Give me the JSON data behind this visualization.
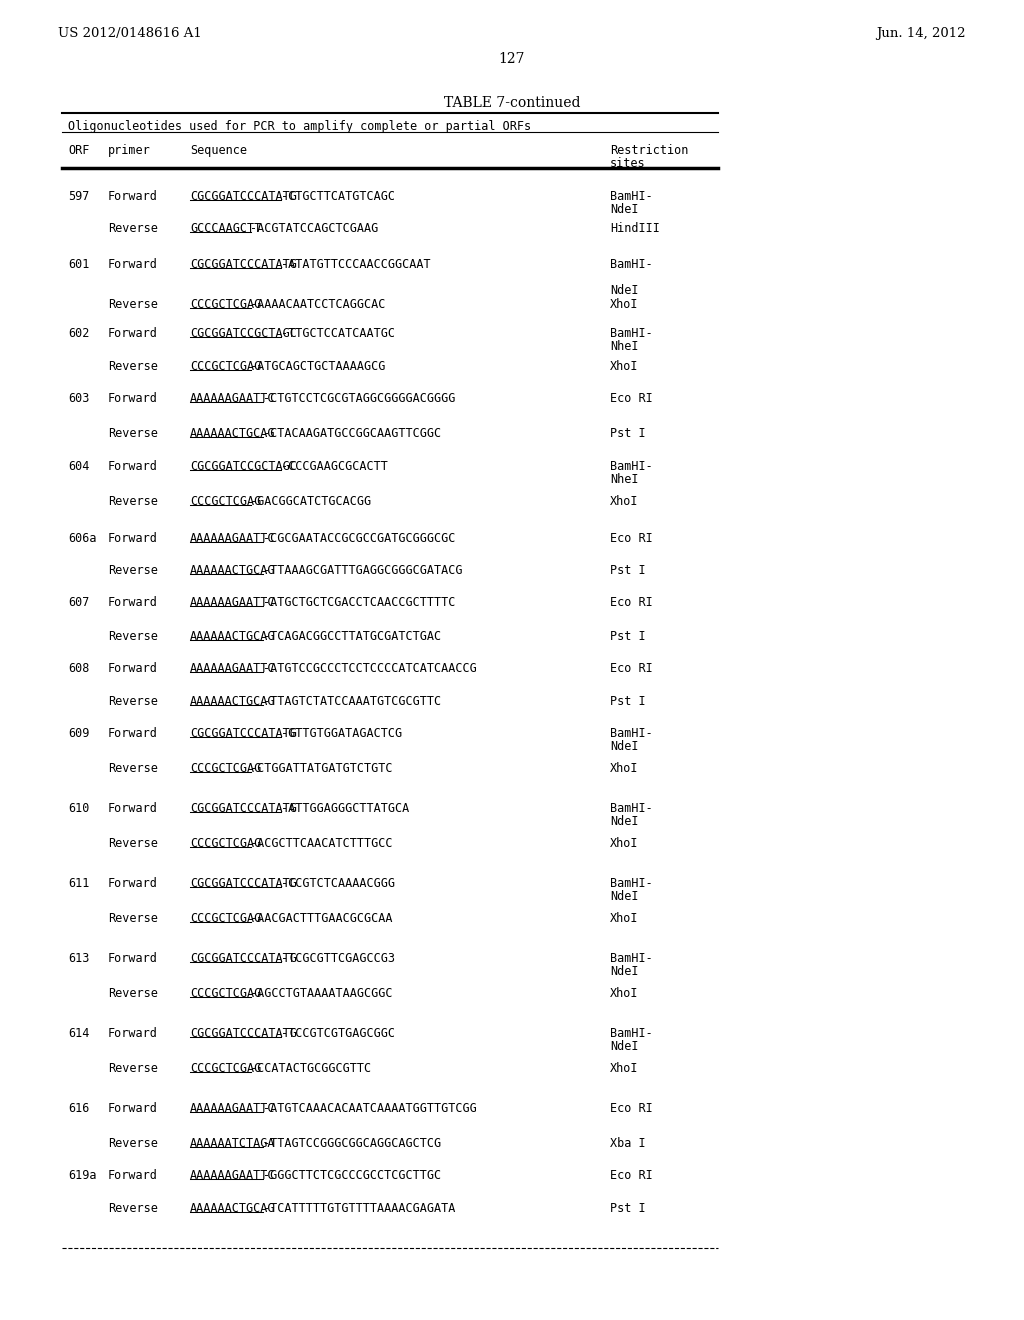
{
  "page_left": "US 2012/0148616 A1",
  "page_right": "Jun. 14, 2012",
  "page_number": "127",
  "table_title": "TABLE 7-continued",
  "table_subtitle": "Oligonucleotides used for PCR to amplify complete or partial ORFs",
  "background_color": "#ffffff",
  "text_color": "#000000",
  "row_entries": [
    [
      "597",
      "Forward",
      "CGCGGATCCCATATG",
      "-CTGCTTCATGTCAGC",
      "BamHI-\nNdeI"
    ],
    [
      "",
      "Reverse",
      "GCCCAAGCTT",
      "-ACGTATCCAGCTCGAAG",
      "HindIII"
    ],
    [
      "601",
      "Forward",
      "CGCGGATCCCATATG",
      "-ATATGTTCCCAACCGGCAAT",
      "BamHI-\n\nNdeI"
    ],
    [
      "",
      "Reverse",
      "CCCGCTCGAG",
      "-AAAACAATCCTCAGGCAC",
      "XhoI"
    ],
    [
      "602",
      "Forward",
      "CGCGGATCCGCTAGC",
      "-TTGCTCCATCAATGC",
      "BamHI-\nNheI"
    ],
    [
      "",
      "Reverse",
      "CCCGCTCGAG",
      "-ATGCAGCTGCTAAAAGCG",
      "XhoI"
    ],
    [
      "603",
      "Forward",
      "AAAAAAGAATTC",
      "-CTGTCCTCGCGTAGGCGGGGACGGGG",
      "Eco RI"
    ],
    [
      "",
      "Reverse",
      "AAAAAACTGCAG",
      "-CTACAAGATGCCGGCAAGTTCGGC",
      "Pst I"
    ],
    [
      "604",
      "Forward",
      "CGCGGATCCGCTAGC",
      "-CCCGAAGCGCACTT",
      "BamHI-\nNheI"
    ],
    [
      "",
      "Reverse",
      "CCCGCTCGAG",
      "-GACGGCATCTGCACGG",
      "XhoI"
    ],
    [
      "606a",
      "Forward",
      "AAAAAAGAATTC",
      "-CGCGAATACCGCGCCGATGCGGGCGC",
      "Eco RI"
    ],
    [
      "",
      "Reverse",
      "AAAAAACTGCAG",
      "-TTAAAGCGATTTGAGGCGGGCGATACG",
      "Pst I"
    ],
    [
      "607",
      "Forward",
      "AAAAAAGAATTC",
      "-ATGCTGCTCGACCTCAACCGCTTTTC",
      "Eco RI"
    ],
    [
      "",
      "Reverse",
      "AAAAAACTGCAG",
      "-TCAGACGGCCTTATGCGATCTGAC",
      "Pst I"
    ],
    [
      "608",
      "Forward",
      "AAAAAAGAATTC",
      "-ATGTCCGCCCTCCTCCCCATCATCAACCG",
      "Eco RI"
    ],
    [
      "",
      "Reverse",
      "AAAAAACTGCAG",
      "-TTAGTCTATCCAAATGTCGCGTTC",
      "Pst I"
    ],
    [
      "609",
      "Forward",
      "CGCGGATCCCATATG",
      "-GTTGTGGATAGACTCG",
      "BamHI-\nNdeI"
    ],
    [
      "",
      "Reverse",
      "CCCGCTCGAG",
      "-CTGGATTATGATGTCTGTC",
      "XhoI"
    ],
    [
      "610",
      "Forward",
      "CGCGGATCCCATATG",
      "-ATTGGAGGGCTTATGCA",
      "BamHI-\nNdeI"
    ],
    [
      "",
      "Reverse",
      "CCCGCTCGAG",
      "-ACGCTTCAACATCTTTGCC",
      "XhoI"
    ],
    [
      "611",
      "Forward",
      "CGCGGATCCCATATG",
      "-CCGTCTCAAAACGGG",
      "BamHI-\nNdeI"
    ],
    [
      "",
      "Reverse",
      "CCCGCTCGAG",
      "-AACGACTTTGAACGCGCAA",
      "XhoI"
    ],
    [
      "613",
      "Forward",
      "CGCGGATCCCATATG",
      "-TCGCGTTCGAGCCG3",
      "BamHI-\nNdeI"
    ],
    [
      "",
      "Reverse",
      "CCCGCTCGAG",
      "-AGCCTGTAAAATAAGCGGC",
      "XhoI"
    ],
    [
      "614",
      "Forward",
      "CGCGGATCCCATATG",
      "-TCCGTCGTGAGCGGC",
      "BamHI-\nNdeI"
    ],
    [
      "",
      "Reverse",
      "CCCGCTCGAG",
      "-CCATACTGCGGCGTTC",
      "XhoI"
    ],
    [
      "616",
      "Forward",
      "AAAAAAGAATTC",
      "-ATGTCAAACACAATCAAAATGGTTGTCGG",
      "Eco RI"
    ],
    [
      "",
      "Reverse",
      "AAAAAATCTAGA",
      "-TTAGTCCGGGCGGCAGGCAGCTCG",
      "Xba I"
    ],
    [
      "619a",
      "Forward",
      "AAAAAAGAATTC",
      "-GGGCTTCTCGCCCGCCTCGCTTGC",
      "Eco RI"
    ],
    [
      "",
      "Reverse",
      "AAAAAACTGCAG",
      "-TCATTTTTGTGTTTTAAAACGAGATA",
      "Pst I"
    ]
  ]
}
